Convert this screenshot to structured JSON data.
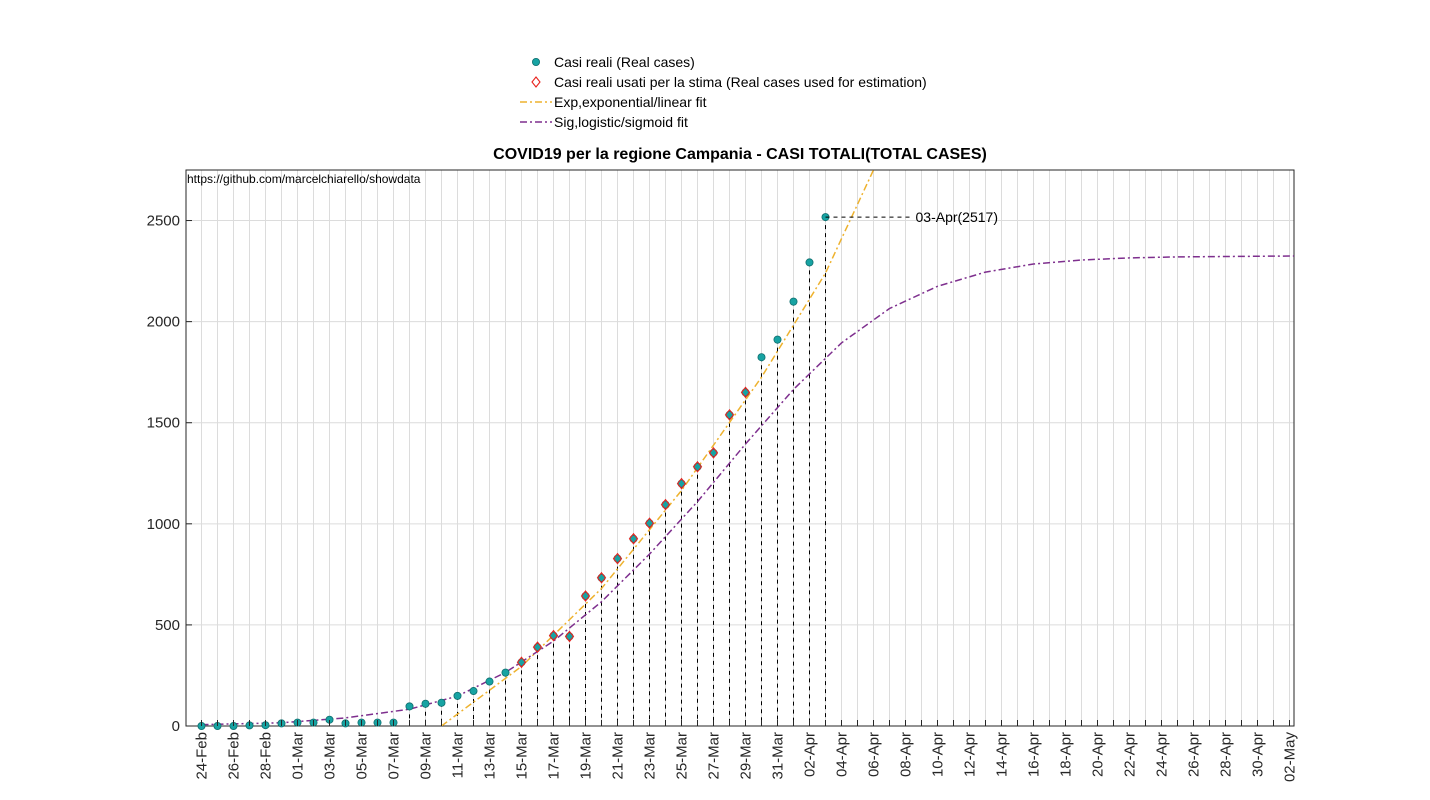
{
  "chart_data": {
    "type": "line",
    "title": "COVID19 per la regione Campania - CASI TOTALI(TOTAL CASES)",
    "source_note": "https://github.com/marcelchiarello/showdata",
    "xlabel": "",
    "ylabel": "",
    "x_start_date": "2020-02-24",
    "x_end_date": "2020-05-03",
    "ylim": [
      0,
      2750
    ],
    "yticks": [
      0,
      500,
      1000,
      1500,
      2000,
      2500
    ],
    "xtick_labels": [
      "24-Feb",
      "26-Feb",
      "28-Feb",
      "01-Mar",
      "03-Mar",
      "05-Mar",
      "07-Mar",
      "09-Mar",
      "11-Mar",
      "13-Mar",
      "15-Mar",
      "17-Mar",
      "19-Mar",
      "21-Mar",
      "23-Mar",
      "25-Mar",
      "27-Mar",
      "29-Mar",
      "31-Mar",
      "02-Apr",
      "04-Apr",
      "06-Apr",
      "08-Apr",
      "10-Apr",
      "12-Apr",
      "14-Apr",
      "16-Apr",
      "18-Apr",
      "20-Apr",
      "22-Apr",
      "24-Apr",
      "26-Apr",
      "28-Apr",
      "30-Apr",
      "02-May"
    ],
    "grid": true,
    "legend_position": "top-center",
    "series": [
      {
        "name": "Casi reali (Real cases)",
        "kind": "markers-circle",
        "color": "#17a3a3",
        "dates": [
          "2020-02-24",
          "2020-02-25",
          "2020-02-26",
          "2020-02-27",
          "2020-02-28",
          "2020-02-29",
          "2020-03-01",
          "2020-03-02",
          "2020-03-03",
          "2020-03-04",
          "2020-03-05",
          "2020-03-06",
          "2020-03-07",
          "2020-03-08",
          "2020-03-09",
          "2020-03-10",
          "2020-03-11",
          "2020-03-12",
          "2020-03-13",
          "2020-03-14",
          "2020-03-15",
          "2020-03-16",
          "2020-03-17",
          "2020-03-18",
          "2020-03-19",
          "2020-03-20",
          "2020-03-21",
          "2020-03-22",
          "2020-03-23",
          "2020-03-24",
          "2020-03-25",
          "2020-03-26",
          "2020-03-27",
          "2020-03-28",
          "2020-03-29",
          "2020-03-30",
          "2020-03-31",
          "2020-04-01",
          "2020-04-02",
          "2020-04-03"
        ],
        "values": [
          0,
          0,
          0,
          3,
          4,
          13,
          17,
          17,
          31,
          13,
          17,
          17,
          17,
          97,
          110,
          115,
          149,
          173,
          220,
          264,
          315,
          390,
          447,
          443,
          643,
          733,
          828,
          926,
          1003,
          1095,
          1199,
          1282,
          1351,
          1539,
          1650,
          1824,
          1911,
          2099,
          2293,
          2517
        ]
      },
      {
        "name": "Casi reali usati per la stima (Real cases used for estimation)",
        "kind": "markers-diamond",
        "color": "#e8231e",
        "dates": [
          "2020-03-15",
          "2020-03-16",
          "2020-03-17",
          "2020-03-18",
          "2020-03-19",
          "2020-03-20",
          "2020-03-21",
          "2020-03-22",
          "2020-03-23",
          "2020-03-24",
          "2020-03-25",
          "2020-03-26",
          "2020-03-27",
          "2020-03-28",
          "2020-03-29"
        ],
        "values": [
          315,
          390,
          447,
          443,
          643,
          733,
          828,
          926,
          1003,
          1095,
          1199,
          1282,
          1351,
          1539,
          1650
        ]
      },
      {
        "name": "Exp,exponential/linear fit",
        "kind": "dashdot-line",
        "color": "#eeb22e",
        "dates": [
          "2020-03-10",
          "2020-03-15",
          "2020-03-20",
          "2020-03-25",
          "2020-03-30",
          "2020-04-03",
          "2020-04-06"
        ],
        "values": [
          0,
          295,
          680,
          1165,
          1725,
          2240,
          2750
        ]
      },
      {
        "name": "Sig,logistic/sigmoid fit",
        "kind": "dashdot-line",
        "color": "#7e2f8e",
        "dates": [
          "2020-02-24",
          "2020-02-29",
          "2020-03-04",
          "2020-03-08",
          "2020-03-11",
          "2020-03-14",
          "2020-03-17",
          "2020-03-20",
          "2020-03-23",
          "2020-03-26",
          "2020-03-29",
          "2020-04-01",
          "2020-04-04",
          "2020-04-07",
          "2020-04-10",
          "2020-04-13",
          "2020-04-16",
          "2020-04-19",
          "2020-04-22",
          "2020-04-25",
          "2020-04-28",
          "2020-05-03"
        ],
        "values": [
          7,
          16,
          40,
          83,
          148,
          265,
          420,
          615,
          850,
          1110,
          1395,
          1665,
          1895,
          2065,
          2175,
          2245,
          2285,
          2305,
          2315,
          2320,
          2322,
          2325
        ]
      }
    ],
    "annotation": {
      "date": "2020-04-03",
      "value": 2517,
      "label": "03-Apr(2517)"
    }
  }
}
